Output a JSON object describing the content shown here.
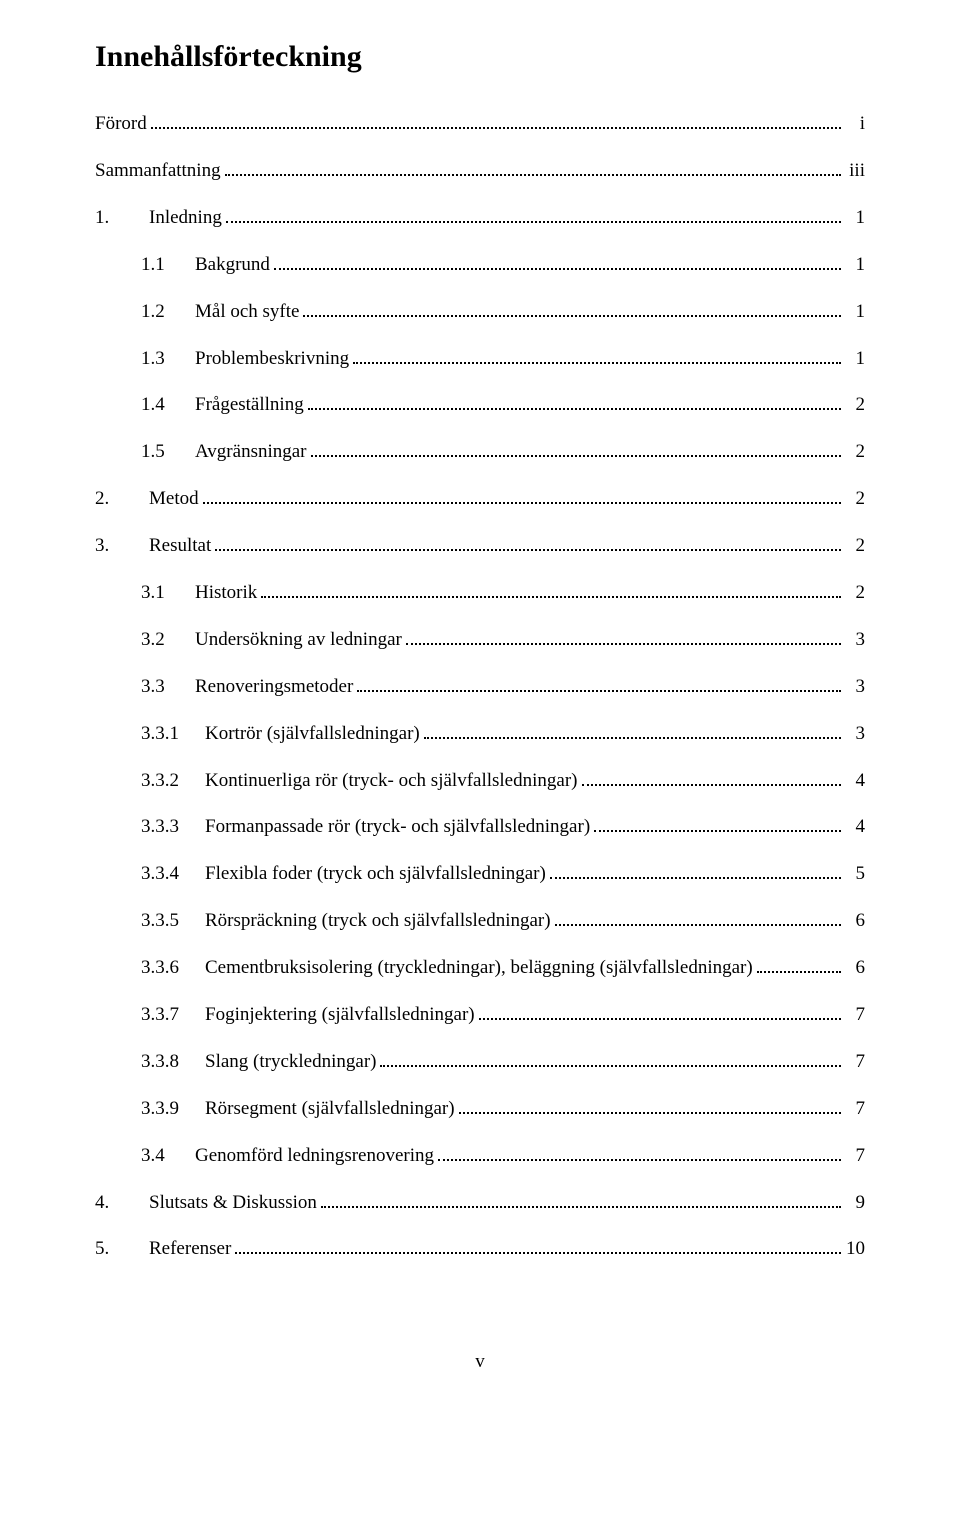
{
  "title": "Innehållsförteckning",
  "pageNumber": "v",
  "entries": [
    {
      "level": 0,
      "num": "",
      "label": "Förord",
      "page": "i"
    },
    {
      "level": 0,
      "num": "",
      "label": "Sammanfattning",
      "page": "iii"
    },
    {
      "level": 0,
      "num": "1.",
      "label": "Inledning",
      "page": "1"
    },
    {
      "level": 1,
      "num": "1.1",
      "label": "Bakgrund",
      "page": "1"
    },
    {
      "level": 1,
      "num": "1.2",
      "label": "Mål och syfte",
      "page": "1"
    },
    {
      "level": 1,
      "num": "1.3",
      "label": "Problembeskrivning",
      "page": "1"
    },
    {
      "level": 1,
      "num": "1.4",
      "label": "Frågeställning",
      "page": "2"
    },
    {
      "level": 1,
      "num": "1.5",
      "label": "Avgränsningar",
      "page": "2"
    },
    {
      "level": 0,
      "num": "2.",
      "label": "Metod",
      "page": "2"
    },
    {
      "level": 0,
      "num": "3.",
      "label": "Resultat",
      "page": "2"
    },
    {
      "level": 1,
      "num": "3.1",
      "label": "Historik",
      "page": "2"
    },
    {
      "level": 1,
      "num": "3.2",
      "label": "Undersökning av ledningar",
      "page": "3"
    },
    {
      "level": 1,
      "num": "3.3",
      "label": "Renoveringsmetoder",
      "page": "3"
    },
    {
      "level": 2,
      "num": "3.3.1",
      "label": "Kortrör (självfallsledningar)",
      "page": "3"
    },
    {
      "level": 2,
      "num": "3.3.2",
      "label": "Kontinuerliga rör (tryck- och självfallsledningar)",
      "page": "4"
    },
    {
      "level": 2,
      "num": "3.3.3",
      "label": "Formanpassade rör (tryck- och självfallsledningar)",
      "page": "4"
    },
    {
      "level": 2,
      "num": "3.3.4",
      "label": "Flexibla foder (tryck och självfallsledningar)",
      "page": "5"
    },
    {
      "level": 2,
      "num": "3.3.5",
      "label": "Rörspräckning (tryck och självfallsledningar)",
      "page": "6"
    },
    {
      "level": 2,
      "num": "3.3.6",
      "label": "Cementbruksisolering (tryckledningar), beläggning (självfallsledningar)",
      "page": "6"
    },
    {
      "level": 2,
      "num": "3.3.7",
      "label": "Foginjektering (självfallsledningar)",
      "page": "7"
    },
    {
      "level": 2,
      "num": "3.3.8",
      "label": "Slang (tryckledningar)",
      "page": "7"
    },
    {
      "level": 2,
      "num": "3.3.9",
      "label": "Rörsegment (självfallsledningar)",
      "page": "7"
    },
    {
      "level": 1,
      "num": "3.4",
      "label": "Genomförd ledningsrenovering",
      "page": "7"
    },
    {
      "level": 0,
      "num": "4.",
      "label": "Slutsats & Diskussion",
      "page": "9"
    },
    {
      "level": 0,
      "num": "5.",
      "label": "Referenser",
      "page": "10"
    }
  ]
}
